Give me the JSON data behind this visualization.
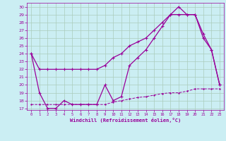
{
  "xlabel": "Windchill (Refroidissement éolien,°C)",
  "bg_color": "#cbeef3",
  "line_color": "#990099",
  "grid_color": "#aaccbb",
  "xlim": [
    -0.5,
    23.5
  ],
  "ylim": [
    16.8,
    30.5
  ],
  "yticks": [
    17,
    18,
    19,
    20,
    21,
    22,
    23,
    24,
    25,
    26,
    27,
    28,
    29,
    30
  ],
  "xticks": [
    0,
    1,
    2,
    3,
    4,
    5,
    6,
    7,
    8,
    9,
    10,
    11,
    12,
    13,
    14,
    15,
    16,
    17,
    18,
    19,
    20,
    21,
    22,
    23
  ],
  "curve1_x": [
    0,
    1,
    2,
    3,
    4,
    5,
    6,
    7,
    8,
    9,
    10,
    11,
    12,
    13,
    14,
    15,
    16,
    17,
    18,
    19,
    20,
    21,
    22,
    23
  ],
  "curve1_y": [
    24.0,
    22.0,
    22.0,
    22.0,
    22.0,
    22.0,
    22.0,
    22.0,
    22.0,
    22.5,
    23.5,
    24.0,
    25.0,
    25.5,
    26.0,
    27.0,
    28.0,
    29.0,
    29.0,
    29.0,
    29.0,
    26.5,
    24.5,
    20.0
  ],
  "curve2_x": [
    0,
    1,
    2,
    3,
    4,
    5,
    6,
    7,
    8,
    9,
    10,
    11,
    12,
    13,
    14,
    15,
    16,
    17,
    18,
    19,
    20,
    21,
    22,
    23
  ],
  "curve2_y": [
    24.0,
    19.0,
    17.0,
    17.0,
    18.0,
    17.5,
    17.5,
    17.5,
    17.5,
    20.0,
    18.0,
    18.5,
    22.5,
    23.5,
    24.5,
    26.0,
    27.5,
    29.0,
    30.0,
    29.0,
    29.0,
    26.0,
    24.5,
    20.0
  ],
  "curve3_x": [
    0,
    1,
    2,
    3,
    4,
    5,
    6,
    7,
    8,
    9,
    10,
    11,
    12,
    13,
    14,
    15,
    16,
    17,
    18,
    19,
    20,
    21,
    22,
    23
  ],
  "curve3_y": [
    17.5,
    17.5,
    17.5,
    17.5,
    17.5,
    17.5,
    17.5,
    17.5,
    17.5,
    17.5,
    17.8,
    18.0,
    18.2,
    18.4,
    18.5,
    18.7,
    18.9,
    19.0,
    19.0,
    19.2,
    19.5,
    19.5,
    19.5,
    19.5
  ]
}
